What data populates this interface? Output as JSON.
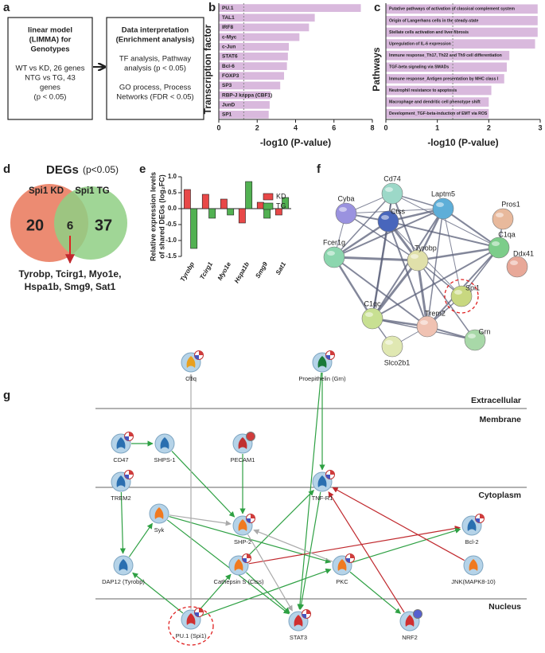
{
  "panel_labels": [
    "a",
    "b",
    "c",
    "d",
    "e",
    "f",
    "g"
  ],
  "flowchart": {
    "box1": [
      "linear model",
      "(LIMMA) for",
      "Genotypes",
      "WT vs KD, 26 genes",
      "NTG vs TG, 43",
      "genes",
      "(p < 0.05)"
    ],
    "box2": [
      "Data interpretation",
      "(Enrichment analysis)",
      "TF analysis, Pathway",
      "analysis (p < 0.05)",
      "GO process, Process",
      "Networks (FDR < 0.05)"
    ]
  },
  "chart_data": [
    {
      "type": "barh",
      "ylabel": "Transcription factor",
      "xlabel": "-log10 (P-value)",
      "categories": [
        "PU.1",
        "TAL1",
        "IRF8",
        "c-Myc",
        "c-Jun",
        "STAT6",
        "Bcl-6",
        "FOXP3",
        "SP3",
        "RBP-J kappa (CBF1)",
        "JunD",
        "SP1"
      ],
      "values": [
        7.4,
        5.0,
        4.7,
        4.2,
        3.65,
        3.6,
        3.55,
        3.4,
        3.2,
        2.7,
        2.65,
        2.6
      ],
      "color": "#d9b9dd",
      "xlim": [
        0,
        8
      ],
      "xticks": [
        0,
        2,
        4,
        6,
        8
      ],
      "threshold": 1.3
    },
    {
      "type": "barh",
      "ylabel": "Pathways",
      "xlabel": "-log10 (P-value)",
      "categories": [
        "Putative pathways of activation of classical complement system",
        "Origin of Langerhans cells in the steady-state",
        "Stellate cells activation and liver fibrosis",
        "Upregulation of IL-6 expression",
        "Immune response_Th17, Th22 and Th9 cell differentiation",
        "TGF-beta signaling via SMADs",
        "Immune response_Antigen presentation by MHC class I",
        "Neutrophil resistance to apoptosis",
        "Macrophage and dendritic cell phenotype shift",
        "Development_TGF-beta-induction of EMT via ROS"
      ],
      "values": [
        2.95,
        2.95,
        2.95,
        2.9,
        2.4,
        2.35,
        2.3,
        2.05,
        2.0,
        2.0
      ],
      "color": "#d9b9dd",
      "xlim": [
        0,
        3
      ],
      "xticks": [
        0,
        1,
        2,
        3
      ],
      "threshold": 1.3
    },
    {
      "type": "bar",
      "ylabel": [
        "Relative expression levels",
        "of shared DEGs (log₂FC)"
      ],
      "categories": [
        "Tyrobp",
        "Tcirg1",
        "Myo1e",
        "Hspa1b",
        "Smg9",
        "Sat1"
      ],
      "series": [
        {
          "name": "KD",
          "color": "#e84848",
          "values": [
            0.6,
            0.45,
            0.3,
            -0.45,
            0.2,
            -0.2
          ]
        },
        {
          "name": "TG",
          "color": "#52b152",
          "values": [
            -1.25,
            -0.3,
            -0.2,
            0.85,
            -0.3,
            0.35
          ]
        }
      ],
      "ylim": [
        -1.5,
        1.0
      ],
      "yticks": [
        {
          "value": -1.5,
          "label": "-1.5"
        },
        {
          "value": -1.0,
          "label": "-1.0"
        },
        {
          "value": -0.5,
          "label": "-0.5"
        },
        {
          "value": 0,
          "label": "0.0"
        },
        {
          "value": 0.5,
          "label": "0.5"
        },
        {
          "value": 1.0,
          "label": "1.0"
        }
      ]
    }
  ],
  "venn": {
    "title": "DEGs",
    "subtitle": "(p<0.05)",
    "set_labels": [
      "Spi1 KD",
      "Spi1 TG"
    ],
    "counts": [
      20,
      6,
      37
    ],
    "genes": [
      "Tyrobp, Tcirg1, Myo1e,",
      "Hspa1b, Smg9, Sat1"
    ]
  },
  "network": {
    "nodes": [
      "Cd74",
      "Cyba",
      "Ctss",
      "Laptm5",
      "Pros1",
      "C1qa",
      "Ddx41",
      "Fcer1g",
      "Tyrobp",
      "Spi1",
      "Trem2",
      "C1qc",
      "Slco2b1",
      "Grn"
    ]
  },
  "pathway": {
    "compartments": [
      "Extracellular",
      "Membrane",
      "Cytoplasm",
      "Nucleus"
    ],
    "nodes": [
      "C1q",
      "Proepithelin (Grn)",
      "CD47",
      "SHPS-1",
      "PECAM1",
      "TREM2",
      "TNF-R1",
      "Syk",
      "SHP-2",
      "Bcl-2",
      "DAP12 (Tyrobp)",
      "Cathepsin S (Ctss)",
      "PKC",
      "JNK(MAPK8-10)",
      "PU.1 (Spi1)",
      "STAT3",
      "NRF2"
    ]
  }
}
